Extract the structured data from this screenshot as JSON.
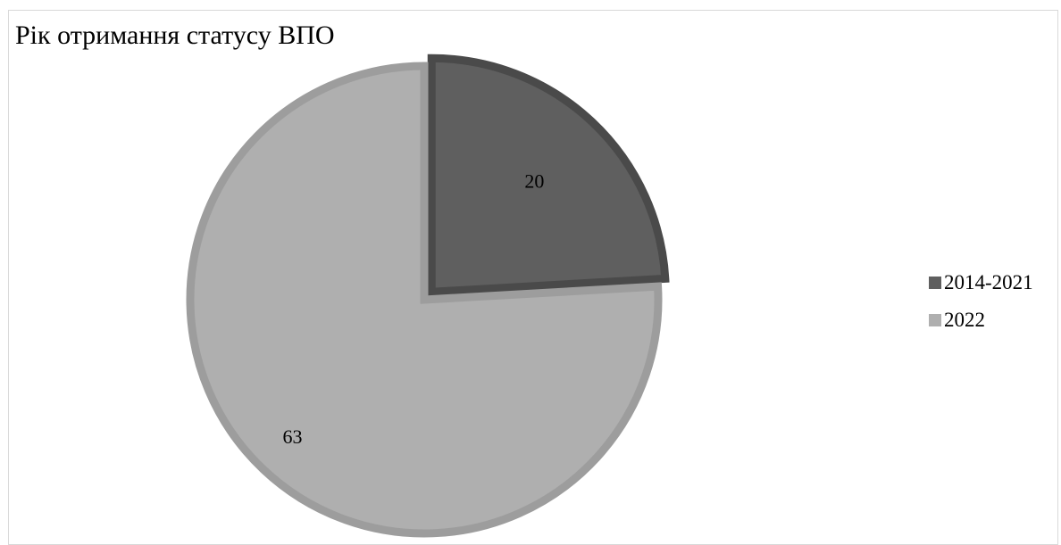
{
  "chart_data": {
    "type": "pie",
    "title": "Рік отримання статусу ВПО",
    "categories": [
      "2014-2021",
      "2022"
    ],
    "values": [
      20,
      63
    ],
    "colors": [
      "#5f5f5f",
      "#afafaf"
    ],
    "border_colors": [
      "#4a4a4a",
      "#9d9d9d"
    ],
    "data_labels": [
      "20",
      "63"
    ],
    "legend_position": "right",
    "exploded_slice": "2014-2021"
  }
}
